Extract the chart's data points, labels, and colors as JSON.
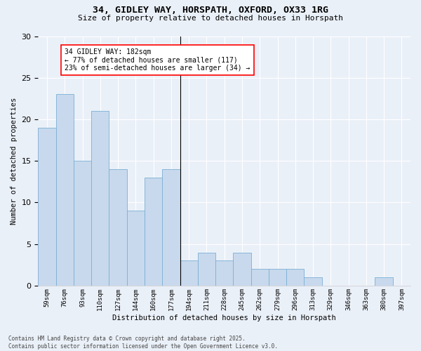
{
  "title1": "34, GIDLEY WAY, HORSPATH, OXFORD, OX33 1RG",
  "title2": "Size of property relative to detached houses in Horspath",
  "xlabel": "Distribution of detached houses by size in Horspath",
  "ylabel": "Number of detached properties",
  "categories": [
    "59sqm",
    "76sqm",
    "93sqm",
    "110sqm",
    "127sqm",
    "144sqm",
    "160sqm",
    "177sqm",
    "194sqm",
    "211sqm",
    "228sqm",
    "245sqm",
    "262sqm",
    "279sqm",
    "296sqm",
    "313sqm",
    "329sqm",
    "346sqm",
    "363sqm",
    "380sqm",
    "397sqm"
  ],
  "values": [
    19,
    23,
    15,
    21,
    14,
    9,
    13,
    14,
    3,
    4,
    3,
    4,
    2,
    2,
    2,
    1,
    0,
    0,
    0,
    1,
    0
  ],
  "bar_color": "#c8d9ed",
  "bar_edge_color": "#7bafd4",
  "annotation_box_text": "34 GIDLEY WAY: 182sqm\n← 77% of detached houses are smaller (117)\n23% of semi-detached houses are larger (34) →",
  "vline_index": 7,
  "background_color": "#eaf0f8",
  "grid_color": "#ffffff",
  "footer_text": "Contains HM Land Registry data © Crown copyright and database right 2025.\nContains public sector information licensed under the Open Government Licence v3.0.",
  "ylim": [
    0,
    30
  ],
  "yticks": [
    0,
    5,
    10,
    15,
    20,
    25,
    30
  ]
}
